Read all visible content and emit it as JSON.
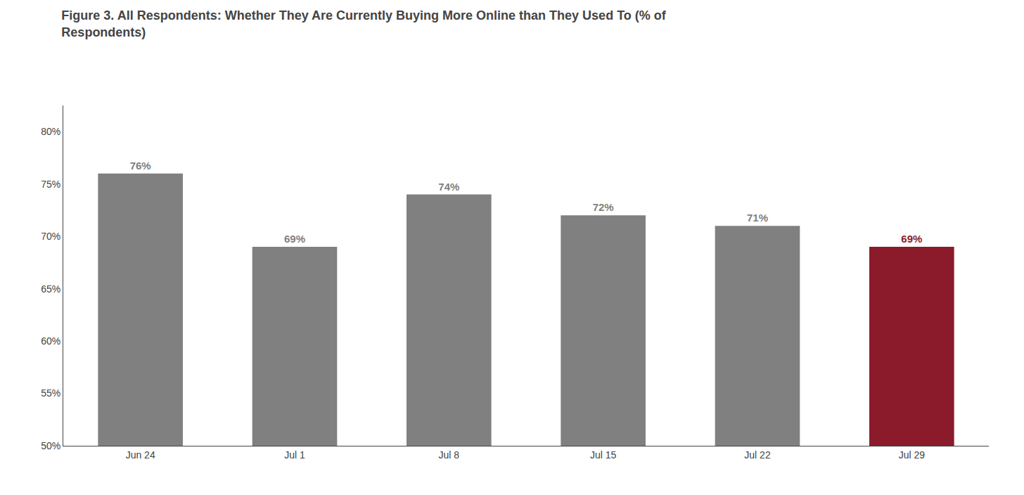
{
  "chart_data": {
    "type": "bar",
    "title": "Figure 3. All Respondents: Whether They Are Currently Buying More Online than They Used To (% of\nRespondents)",
    "categories": [
      "Jun 24",
      "Jul 1",
      "Jul 8",
      "Jul 15",
      "Jul 22",
      "Jul 29"
    ],
    "values": [
      0.76,
      0.69,
      0.74,
      0.72,
      0.71,
      0.69
    ],
    "value_labels": [
      "76%",
      "69%",
      "74%",
      "72%",
      "71%",
      "69%"
    ],
    "data_labels": true,
    "colors": [
      "#808080",
      "#808080",
      "#808080",
      "#808080",
      "#808080",
      "#8B1A2A"
    ],
    "ylim": [
      0.5,
      0.825
    ],
    "yticks": [
      {
        "value": 0.5,
        "label": "50%"
      },
      {
        "value": 0.55,
        "label": "55%"
      },
      {
        "value": 0.6,
        "label": "60%"
      },
      {
        "value": 0.65,
        "label": "65%"
      },
      {
        "value": 0.7,
        "label": "70%"
      },
      {
        "value": 0.75,
        "label": "75%"
      },
      {
        "value": 0.8,
        "label": "80%"
      }
    ],
    "grid": false
  }
}
